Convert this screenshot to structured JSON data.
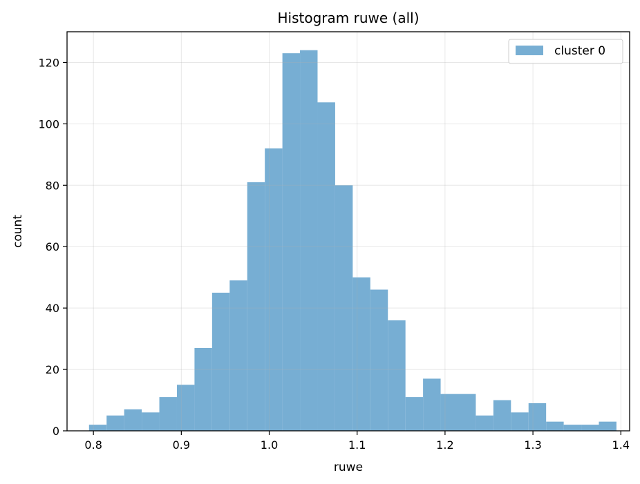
{
  "chart_data": {
    "type": "bar",
    "title": "Histogram ruwe (all)",
    "xlabel": "ruwe",
    "ylabel": "count",
    "xlim": [
      0.77,
      1.41
    ],
    "ylim": [
      0,
      130
    ],
    "xticks": [
      0.8,
      0.9,
      1.0,
      1.1,
      1.2,
      1.3,
      1.4
    ],
    "xtick_labels": [
      "0.8",
      "0.9",
      "1.0",
      "1.1",
      "1.2",
      "1.3",
      "1.4"
    ],
    "yticks": [
      0,
      20,
      40,
      60,
      80,
      100,
      120
    ],
    "ytick_labels": [
      "0",
      "20",
      "40",
      "60",
      "80",
      "100",
      "120"
    ],
    "grid": true,
    "legend_position": "top-right",
    "series": [
      {
        "name": "cluster 0",
        "color": "#77aed3",
        "bin_start": 0.795,
        "bin_width": 0.02,
        "values": [
          2,
          5,
          7,
          6,
          11,
          15,
          27,
          45,
          49,
          81,
          92,
          123,
          124,
          107,
          80,
          50,
          46,
          36,
          11,
          17,
          12,
          12,
          5,
          10,
          6,
          9,
          3,
          2,
          2,
          3
        ]
      }
    ]
  }
}
